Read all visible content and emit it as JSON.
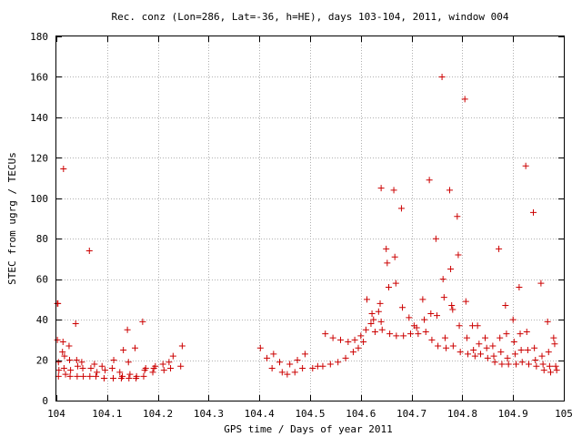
{
  "chart_data": {
    "type": "scatter",
    "title": "Rec. conz (Lon=286, Lat=-36, h=HE), days 103-104, 2011, window 004",
    "xlabel": "GPS time / Days of year 2011",
    "ylabel": "STEC from ugrg / TECUs",
    "xlim": [
      104.0,
      105.0
    ],
    "ylim": [
      0,
      180
    ],
    "xticks": [
      104.0,
      104.1,
      104.2,
      104.3,
      104.4,
      104.5,
      104.6,
      104.7,
      104.8,
      104.9,
      105.0
    ],
    "xtick_labels": [
      "104",
      "104.1",
      "104.2",
      "104.3",
      "104.4",
      "104.5",
      "104.6",
      "104.7",
      "104.8",
      "104.9",
      "105"
    ],
    "yticks": [
      0,
      20,
      40,
      60,
      80,
      100,
      120,
      140,
      160,
      180
    ],
    "grid": true,
    "marker": "+",
    "color": "#cc0000",
    "series": [
      {
        "points": [
          [
            104.002,
            48
          ],
          [
            104.003,
            48
          ],
          [
            104.002,
            30
          ],
          [
            104.004,
            19
          ],
          [
            104.005,
            15
          ],
          [
            104.004,
            12
          ],
          [
            104.012,
            24
          ],
          [
            104.014,
            114.5
          ],
          [
            104.013,
            29
          ],
          [
            104.016,
            22
          ],
          [
            104.015,
            16
          ],
          [
            104.018,
            13
          ],
          [
            104.025,
            27
          ],
          [
            104.026,
            20
          ],
          [
            104.028,
            15
          ],
          [
            104.027,
            12
          ],
          [
            104.038,
            38
          ],
          [
            104.04,
            20
          ],
          [
            104.042,
            17
          ],
          [
            104.041,
            12
          ],
          [
            104.05,
            19
          ],
          [
            104.052,
            16
          ],
          [
            104.053,
            12
          ],
          [
            104.065,
            74
          ],
          [
            104.066,
            12
          ],
          [
            104.068,
            16
          ],
          [
            104.075,
            18
          ],
          [
            104.078,
            12
          ],
          [
            104.08,
            14
          ],
          [
            104.09,
            17
          ],
          [
            104.094,
            11
          ],
          [
            104.096,
            15
          ],
          [
            104.11,
            16
          ],
          [
            104.112,
            11
          ],
          [
            104.113,
            20
          ],
          [
            104.125,
            14
          ],
          [
            104.128,
            11
          ],
          [
            104.13,
            12
          ],
          [
            104.132,
            25
          ],
          [
            104.14,
            35
          ],
          [
            104.142,
            19
          ],
          [
            104.143,
            11
          ],
          [
            104.145,
            13
          ],
          [
            104.155,
            26
          ],
          [
            104.157,
            11
          ],
          [
            104.158,
            12
          ],
          [
            104.17,
            39
          ],
          [
            104.172,
            12
          ],
          [
            104.174,
            15
          ],
          [
            104.176,
            16
          ],
          [
            104.19,
            14
          ],
          [
            104.192,
            16
          ],
          [
            104.195,
            17
          ],
          [
            104.21,
            18
          ],
          [
            104.212,
            15
          ],
          [
            104.222,
            19
          ],
          [
            104.225,
            16
          ],
          [
            104.23,
            22
          ],
          [
            104.245,
            17
          ],
          [
            104.248,
            27
          ],
          [
            104.402,
            26
          ],
          [
            104.415,
            21
          ],
          [
            104.425,
            16
          ],
          [
            104.428,
            23
          ],
          [
            104.44,
            19
          ],
          [
            104.445,
            14
          ],
          [
            104.455,
            13
          ],
          [
            104.46,
            18
          ],
          [
            104.47,
            14
          ],
          [
            104.475,
            20
          ],
          [
            104.485,
            16
          ],
          [
            104.49,
            23
          ],
          [
            104.505,
            16
          ],
          [
            104.515,
            17
          ],
          [
            104.525,
            17
          ],
          [
            104.53,
            33
          ],
          [
            104.54,
            18
          ],
          [
            104.545,
            31
          ],
          [
            104.555,
            19
          ],
          [
            104.56,
            30
          ],
          [
            104.57,
            21
          ],
          [
            104.575,
            29
          ],
          [
            104.585,
            24
          ],
          [
            104.588,
            30
          ],
          [
            104.595,
            26
          ],
          [
            104.6,
            32
          ],
          [
            104.605,
            29
          ],
          [
            104.61,
            35
          ],
          [
            104.612,
            50
          ],
          [
            104.62,
            38
          ],
          [
            104.622,
            43
          ],
          [
            104.625,
            40
          ],
          [
            104.628,
            34
          ],
          [
            104.635,
            44
          ],
          [
            104.638,
            48
          ],
          [
            104.64,
            39
          ],
          [
            104.642,
            35
          ],
          [
            104.64,
            105
          ],
          [
            104.65,
            75
          ],
          [
            104.652,
            68
          ],
          [
            104.655,
            56
          ],
          [
            104.657,
            33
          ],
          [
            104.665,
            104
          ],
          [
            104.667,
            71
          ],
          [
            104.669,
            58
          ],
          [
            104.67,
            32
          ],
          [
            104.68,
            95
          ],
          [
            104.682,
            46
          ],
          [
            104.684,
            32
          ],
          [
            104.695,
            41
          ],
          [
            104.698,
            33
          ],
          [
            104.705,
            37
          ],
          [
            104.71,
            36
          ],
          [
            104.713,
            33
          ],
          [
            104.722,
            50
          ],
          [
            104.725,
            40
          ],
          [
            104.728,
            34
          ],
          [
            104.735,
            109
          ],
          [
            104.738,
            43
          ],
          [
            104.74,
            30
          ],
          [
            104.748,
            80
          ],
          [
            104.75,
            42
          ],
          [
            104.752,
            27
          ],
          [
            104.76,
            160
          ],
          [
            104.762,
            60
          ],
          [
            104.764,
            51
          ],
          [
            104.766,
            31
          ],
          [
            104.768,
            26
          ],
          [
            104.775,
            104
          ],
          [
            104.777,
            65
          ],
          [
            104.779,
            47
          ],
          [
            104.781,
            45
          ],
          [
            104.782,
            27
          ],
          [
            104.79,
            91
          ],
          [
            104.792,
            72
          ],
          [
            104.794,
            37
          ],
          [
            104.796,
            24
          ],
          [
            104.805,
            149
          ],
          [
            104.807,
            49
          ],
          [
            104.809,
            31
          ],
          [
            104.811,
            23
          ],
          [
            104.82,
            37
          ],
          [
            104.822,
            25
          ],
          [
            104.825,
            22
          ],
          [
            104.83,
            37
          ],
          [
            104.833,
            28
          ],
          [
            104.836,
            23
          ],
          [
            104.845,
            31
          ],
          [
            104.848,
            26
          ],
          [
            104.85,
            21
          ],
          [
            104.86,
            27
          ],
          [
            104.862,
            22
          ],
          [
            104.864,
            19
          ],
          [
            104.872,
            75
          ],
          [
            104.874,
            31
          ],
          [
            104.876,
            24
          ],
          [
            104.878,
            18
          ],
          [
            104.885,
            47
          ],
          [
            104.887,
            33
          ],
          [
            104.889,
            21
          ],
          [
            104.891,
            18
          ],
          [
            104.9,
            40
          ],
          [
            104.902,
            29
          ],
          [
            104.904,
            23
          ],
          [
            104.906,
            18
          ],
          [
            104.912,
            56
          ],
          [
            104.914,
            33
          ],
          [
            104.916,
            25
          ],
          [
            104.918,
            19
          ],
          [
            104.925,
            116
          ],
          [
            104.927,
            34
          ],
          [
            104.929,
            25
          ],
          [
            104.931,
            18
          ],
          [
            104.94,
            93
          ],
          [
            104.942,
            26
          ],
          [
            104.944,
            20
          ],
          [
            104.946,
            17
          ],
          [
            104.955,
            58
          ],
          [
            104.957,
            22
          ],
          [
            104.959,
            18
          ],
          [
            104.961,
            15
          ],
          [
            104.968,
            39
          ],
          [
            104.97,
            24
          ],
          [
            104.972,
            17
          ],
          [
            104.974,
            14
          ],
          [
            104.98,
            31
          ],
          [
            104.982,
            28
          ],
          [
            104.984,
            17
          ],
          [
            104.986,
            15
          ]
        ]
      }
    ]
  }
}
